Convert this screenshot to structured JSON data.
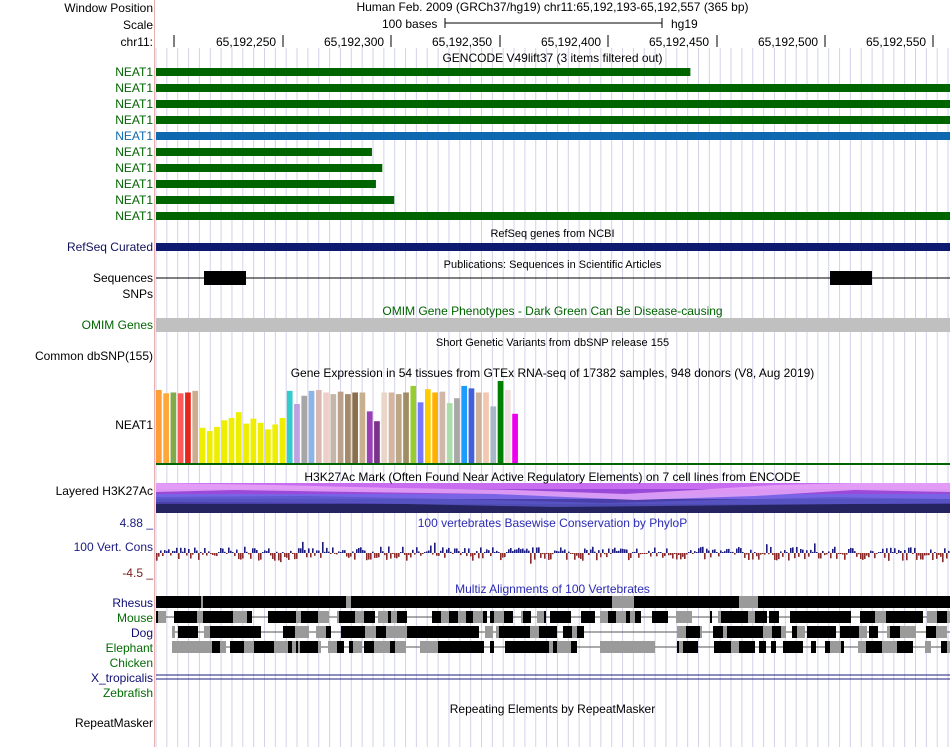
{
  "header": {
    "window_position_label": "Window Position",
    "scale_label": "Scale",
    "chrom_label": "chr11:",
    "assembly_title": "Human Feb. 2009 (GRCh37/hg19)   chr11:65,192,193-65,192,557 (365 bp)",
    "scale_text": "100 bases",
    "db_name": "hg19",
    "ruler_ticks": [
      "65,192,250",
      "65,192,300",
      "65,192,350",
      "65,192,400",
      "65,192,450",
      "65,192,500",
      "65,192,550"
    ]
  },
  "tracks": {
    "gencode": {
      "title": "GENCODE V49lift37 (3 items filtered out)",
      "items": [
        {
          "label": "NEAT1",
          "color": "#006400",
          "end_fraction": 0.673
        },
        {
          "label": "NEAT1",
          "color": "#006400",
          "end_fraction": 1.0
        },
        {
          "label": "NEAT1",
          "color": "#006400",
          "end_fraction": 1.0
        },
        {
          "label": "NEAT1",
          "color": "#006400",
          "end_fraction": 1.0
        },
        {
          "label": "NEAT1",
          "color": "#0d68b0",
          "end_fraction": 1.0
        },
        {
          "label": "NEAT1",
          "color": "#006400",
          "end_fraction": 0.272
        },
        {
          "label": "NEAT1",
          "color": "#006400",
          "end_fraction": 0.285
        },
        {
          "label": "NEAT1",
          "color": "#006400",
          "end_fraction": 0.277
        },
        {
          "label": "NEAT1",
          "color": "#006400",
          "end_fraction": 0.3
        },
        {
          "label": "NEAT1",
          "color": "#006400",
          "end_fraction": 1.0
        }
      ]
    },
    "refseq": {
      "title": "RefSeq genes from NCBI",
      "label": "RefSeq Curated",
      "color": "#0d1a70"
    },
    "publications": {
      "title": "Publications: Sequences in Scientific Articles",
      "label": "Sequences"
    },
    "snps_label": "SNPs",
    "omim": {
      "title": "OMIM Gene Phenotypes - Dark Green Can Be Disease-causing",
      "label": "OMIM Genes",
      "color": "#c0c0c0"
    },
    "dbsnp": {
      "title": "Short Genetic Variants from dbSNP release 155",
      "label": "Common dbSNP(155)"
    },
    "gtex": {
      "title": "Gene Expression in 54 tissues from GTEx RNA-seq of 17382 samples, 948 donors (V8, Aug 2019)",
      "label": "NEAT1",
      "bars": [
        {
          "v": 0.89,
          "c": "#ff9e36"
        },
        {
          "v": 0.85,
          "c": "#ffa838"
        },
        {
          "v": 0.86,
          "c": "#83aa4a"
        },
        {
          "v": 0.85,
          "c": "#ff5a5a"
        },
        {
          "v": 0.86,
          "c": "#e4261c"
        },
        {
          "v": 0.88,
          "c": "#cdad8f"
        },
        {
          "v": 0.43,
          "c": "#eeee00"
        },
        {
          "v": 0.39,
          "c": "#eeee00"
        },
        {
          "v": 0.44,
          "c": "#eeee00"
        },
        {
          "v": 0.52,
          "c": "#eeee00"
        },
        {
          "v": 0.55,
          "c": "#eeee00"
        },
        {
          "v": 0.62,
          "c": "#eeee00"
        },
        {
          "v": 0.48,
          "c": "#eeee00"
        },
        {
          "v": 0.54,
          "c": "#eeee00"
        },
        {
          "v": 0.49,
          "c": "#eeee00"
        },
        {
          "v": 0.41,
          "c": "#eeee00"
        },
        {
          "v": 0.47,
          "c": "#eeee00"
        },
        {
          "v": 0.55,
          "c": "#eeee00"
        },
        {
          "v": 0.88,
          "c": "#33cccc"
        },
        {
          "v": 0.72,
          "c": "#c0a0e0"
        },
        {
          "v": 0.82,
          "c": "#a6a6a6"
        },
        {
          "v": 0.88,
          "c": "#8cb4e6"
        },
        {
          "v": 0.89,
          "c": "#d8b8b0"
        },
        {
          "v": 0.86,
          "c": "#eecfc8"
        },
        {
          "v": 0.84,
          "c": "#c4b6a8"
        },
        {
          "v": 0.87,
          "c": "#bba08a"
        },
        {
          "v": 0.84,
          "c": "#a38a6a"
        },
        {
          "v": 0.86,
          "c": "#8b6e4c"
        },
        {
          "v": 0.86,
          "c": "#c8b08e"
        },
        {
          "v": 0.63,
          "c": "#9b3fb5"
        },
        {
          "v": 0.51,
          "c": "#7b338a"
        },
        {
          "v": 0.86,
          "c": "#e8d6c8"
        },
        {
          "v": 0.86,
          "c": "#d4b6a0"
        },
        {
          "v": 0.84,
          "c": "#bca684"
        },
        {
          "v": 0.86,
          "c": "#a08c64"
        },
        {
          "v": 0.94,
          "c": "#99cc33"
        },
        {
          "v": 0.74,
          "c": "#7777ff"
        },
        {
          "v": 0.9,
          "c": "#ffcc00"
        },
        {
          "v": 0.86,
          "c": "#ffb000"
        },
        {
          "v": 0.87,
          "c": "#d0b8a8"
        },
        {
          "v": 0.73,
          "c": "#aaddaa"
        },
        {
          "v": 0.79,
          "c": "#a8a8a8"
        },
        {
          "v": 0.94,
          "c": "#1d9cff"
        },
        {
          "v": 0.91,
          "c": "#4060e0"
        },
        {
          "v": 0.86,
          "c": "#cfb29a"
        },
        {
          "v": 0.86,
          "c": "#f2c8b0"
        },
        {
          "v": 0.69,
          "c": "#a8b8c8"
        },
        {
          "v": 1.0,
          "c": "#008000"
        },
        {
          "v": 0.89,
          "c": "#f0e0dc"
        },
        {
          "v": 0.6,
          "c": "#ee00ee"
        }
      ]
    },
    "h3k27ac": {
      "title": "H3K27Ac Mark (Often Found Near Active Regulatory Elements) on 7 cell lines from ENCODE",
      "label": "Layered H3K27Ac"
    },
    "conservation": {
      "title": "100 vertebrates Basewise Conservation by PhyloP",
      "label": "100 Vert. Cons",
      "max": "4.88 _",
      "min": "-4.5 _"
    },
    "multiz": {
      "title": "Multiz Alignments of 100 Vertebrates",
      "species": [
        {
          "name": "Rhesus",
          "style": "navy"
        },
        {
          "name": "Mouse",
          "style": "green"
        },
        {
          "name": "Dog",
          "style": "navy"
        },
        {
          "name": "Elephant",
          "style": "green"
        },
        {
          "name": "Chicken",
          "style": "green"
        },
        {
          "name": "X_tropicalis",
          "style": "navy"
        },
        {
          "name": "Zebrafish",
          "style": "green"
        }
      ]
    },
    "repeatmasker": {
      "title": "Repeating Elements by RepeatMasker",
      "label": "RepeatMasker"
    }
  },
  "colors": {
    "grid": "#d2d2ea",
    "divider": "#e8b0b0",
    "gtex_baseline": "#006400",
    "phylop_pos": "#1b1b80",
    "phylop_neg": "#8a2a2a"
  }
}
